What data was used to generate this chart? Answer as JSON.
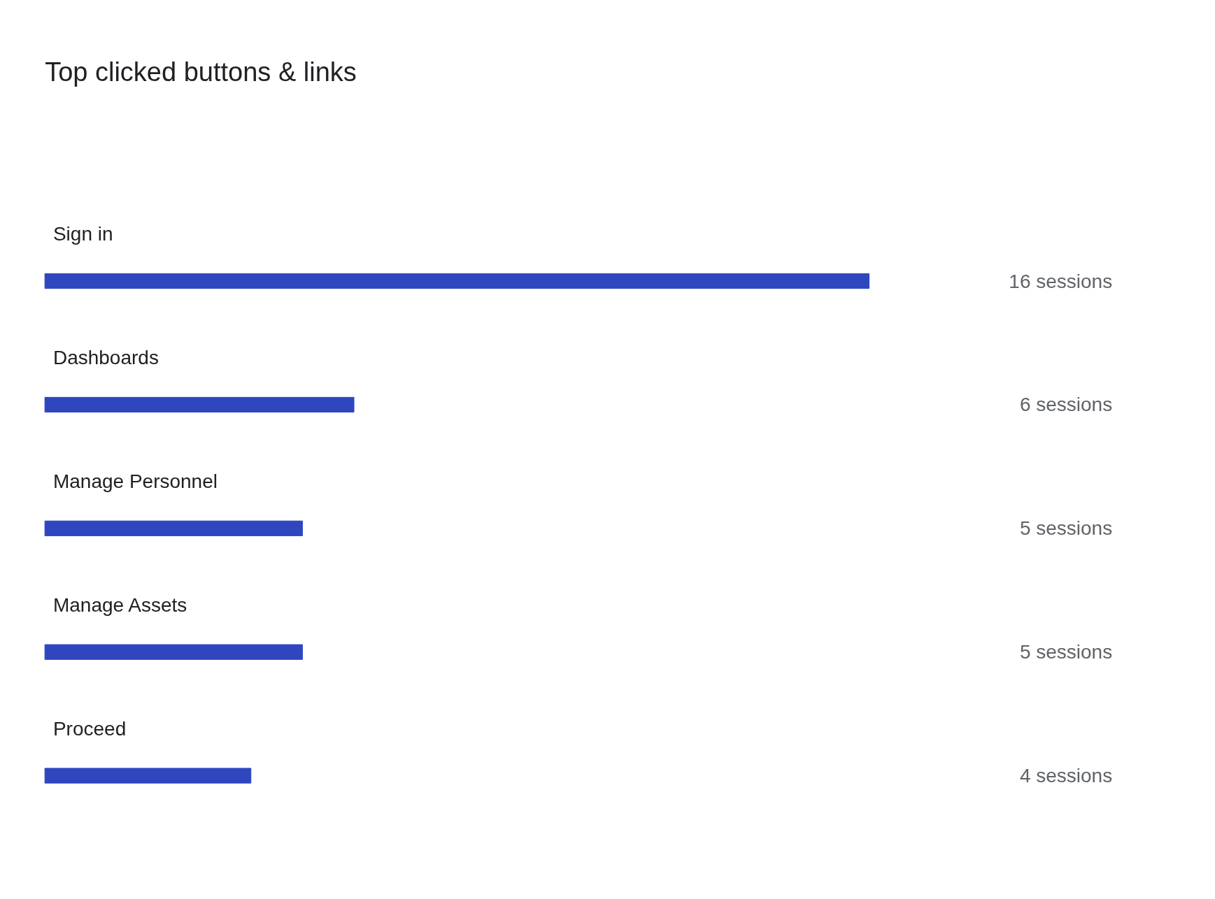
{
  "chart_data": {
    "type": "bar",
    "orientation": "horizontal",
    "title": "Top clicked buttons & links",
    "categories": [
      "Sign in",
      "Dashboards",
      "Manage Personnel",
      "Manage Assets",
      "Proceed"
    ],
    "values": [
      16,
      6,
      5,
      5,
      4
    ],
    "value_labels": [
      "16 sessions",
      "6 sessions",
      "5 sessions",
      "5 sessions",
      "4 sessions"
    ],
    "color": "#3046bf",
    "grid": false
  }
}
